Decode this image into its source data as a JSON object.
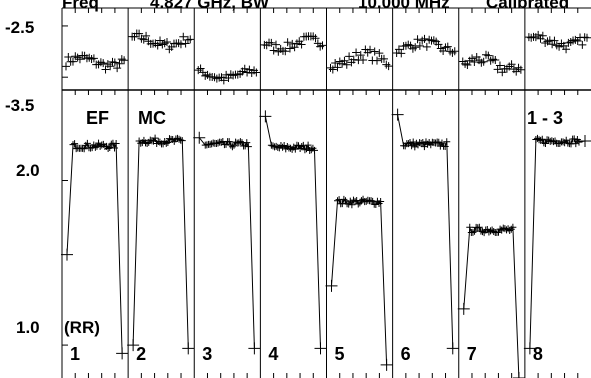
{
  "header": {
    "fragments": [
      "Freq",
      "4.827 GHz, BW",
      "10.000 MHz",
      "Calibrated"
    ]
  },
  "annotations": {
    "ef_label": "EF",
    "mc_label": "MC",
    "baseline_label": "1 - 3",
    "rr_label": "(RR)"
  },
  "chart_data": [
    {
      "type": "scatter",
      "panel": "phase",
      "ytick_labels": [
        "-2.5",
        "-3.5"
      ],
      "yticks": [
        -2.5,
        -3.5
      ],
      "ylim": [
        -3.75,
        -2.15
      ],
      "grid": false,
      "series": [
        {
          "panel": "1",
          "level": -3.2,
          "noise": 0.08
        },
        {
          "panel": "2",
          "level": -2.8,
          "noise": 0.08
        },
        {
          "panel": "3",
          "level": -3.45,
          "noise": 0.07
        },
        {
          "panel": "4",
          "level": -2.85,
          "noise": 0.08
        },
        {
          "panel": "5",
          "level": -3.15,
          "noise": 0.1
        },
        {
          "panel": "6",
          "level": -2.9,
          "noise": 0.08
        },
        {
          "panel": "7",
          "level": -3.25,
          "noise": 0.1
        },
        {
          "panel": "8",
          "level": -2.8,
          "noise": 0.08
        }
      ]
    },
    {
      "type": "scatter",
      "panel": "amplitude",
      "ytick_labels": [
        "2.0",
        "1.0"
      ],
      "yticks": [
        2.0,
        1.0
      ],
      "ylim": [
        0.8,
        2.55
      ],
      "grid": false,
      "series": [
        {
          "panel": "1",
          "level": 2.21,
          "start": 1.55,
          "spike_end": 0.95
        },
        {
          "panel": "2",
          "level": 2.24,
          "start": 1.0,
          "spike_end": 0.98
        },
        {
          "panel": "3",
          "level": 2.22,
          "start": 2.26,
          "spike_end": 0.98
        },
        {
          "panel": "4",
          "level": 2.2,
          "start": 2.39,
          "spike_end": 0.98
        },
        {
          "panel": "5",
          "level": 1.87,
          "start": 1.36,
          "spike_end": 0.88
        },
        {
          "panel": "6",
          "level": 2.22,
          "start": 2.4,
          "spike_end": 0.98
        },
        {
          "panel": "7",
          "level": 1.7,
          "start": 1.22,
          "spike_end": 0.8
        },
        {
          "panel": "8",
          "level": 2.24,
          "start": 0.98,
          "spike_end": 2.24
        }
      ]
    }
  ],
  "panels": [
    "1",
    "2",
    "3",
    "4",
    "5",
    "6",
    "7",
    "8"
  ]
}
